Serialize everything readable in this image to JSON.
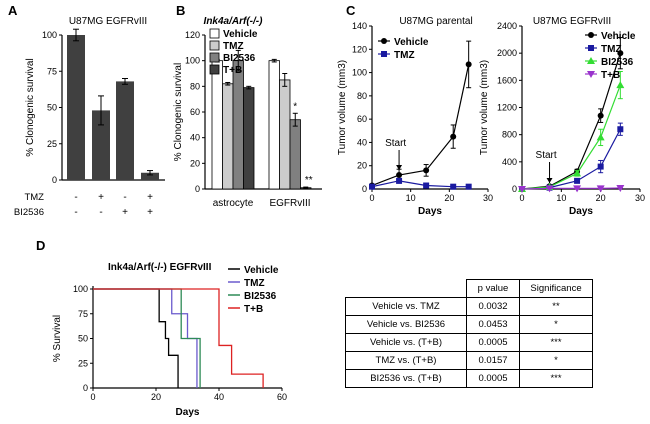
{
  "chart_data": [
    {
      "panel": "A",
      "type": "bar",
      "title": "U87MG EGFRvIII",
      "ylabel": "% Clonogenic survival",
      "ylim": [
        0,
        100
      ],
      "yticks": [
        0,
        25,
        50,
        75,
        100
      ],
      "row_labels": [
        "TMZ",
        "BI2536"
      ],
      "conditions": [
        [
          "-",
          "-"
        ],
        [
          "+",
          "-"
        ],
        [
          "-",
          "+"
        ],
        [
          "+",
          "+"
        ]
      ],
      "values": [
        100,
        48,
        68,
        5
      ],
      "errors": [
        4,
        10,
        2,
        1.5
      ],
      "color": "#404040"
    },
    {
      "panel": "B",
      "type": "bar",
      "title": "Ink4a/Arf(-/-)",
      "ylabel": "% Clonogenic survival",
      "ylim": [
        0,
        120
      ],
      "yticks": [
        0,
        20,
        40,
        60,
        80,
        100,
        120
      ],
      "categories": [
        "astrocyte",
        "EGFRvIII"
      ],
      "legend_position": "top",
      "series": [
        {
          "name": "Vehicle",
          "color": "#ffffff",
          "values": [
            100,
            100
          ],
          "errors": [
            1,
            1
          ]
        },
        {
          "name": "TMZ",
          "color": "#cccccc",
          "values": [
            82,
            85
          ],
          "errors": [
            1,
            5
          ]
        },
        {
          "name": "BI2536",
          "color": "#808080",
          "values": [
            100,
            54
          ],
          "errors": [
            8,
            5
          ]
        },
        {
          "name": "T+B",
          "color": "#404040",
          "values": [
            79,
            1
          ],
          "errors": [
            1,
            0.5
          ]
        }
      ],
      "annotations": [
        {
          "category": "EGFRvIII",
          "series": "BI2536",
          "text": "*"
        },
        {
          "category": "EGFRvIII",
          "series": "T+B",
          "text": "**"
        }
      ]
    },
    {
      "panel": "C",
      "type": "line",
      "title": "U87MG parental",
      "xlabel": "Days",
      "ylabel": "Tumor volume (mm3)",
      "xlim": [
        0,
        30
      ],
      "xticks": [
        0,
        10,
        20,
        30
      ],
      "ylim": [
        0,
        140
      ],
      "yticks": [
        0,
        20,
        40,
        60,
        80,
        100,
        120,
        140
      ],
      "annotation": "Start",
      "annotation_x": 7,
      "legend_position": "top-left",
      "series": [
        {
          "name": "Vehicle",
          "color": "#000000",
          "marker": "circle",
          "x": [
            0,
            7,
            14,
            21,
            25
          ],
          "y": [
            3,
            12,
            16,
            45,
            107
          ],
          "errors": [
            1,
            5,
            5,
            10,
            20
          ]
        },
        {
          "name": "TMZ",
          "color": "#1a1aa0",
          "marker": "square",
          "x": [
            0,
            7,
            14,
            21,
            25
          ],
          "y": [
            2,
            7,
            3,
            2,
            2
          ],
          "errors": [
            1,
            2,
            1,
            1,
            1
          ]
        }
      ]
    },
    {
      "panel": "C",
      "type": "line",
      "title": "U87MG EGFRvIII",
      "xlabel": "Days",
      "ylabel": "Tumor volume (mm3)",
      "xlim": [
        0,
        30
      ],
      "xticks": [
        0,
        10,
        20,
        30
      ],
      "ylim": [
        0,
        2400
      ],
      "yticks": [
        0,
        400,
        800,
        1200,
        1600,
        2000,
        2400
      ],
      "annotation": "Start",
      "annotation_x": 7,
      "legend_position": "top-right",
      "series": [
        {
          "name": "Vehicle",
          "color": "#000000",
          "marker": "circle",
          "x": [
            0,
            7,
            14,
            20,
            25
          ],
          "y": [
            0,
            40,
            260,
            1080,
            2000
          ],
          "errors": [
            5,
            10,
            30,
            100,
            230
          ]
        },
        {
          "name": "TMZ",
          "color": "#1a1aa0",
          "marker": "square",
          "x": [
            0,
            7,
            14,
            20,
            25
          ],
          "y": [
            0,
            20,
            120,
            330,
            880
          ],
          "errors": [
            5,
            5,
            20,
            90,
            90
          ]
        },
        {
          "name": "BI2536",
          "color": "#33dd33",
          "marker": "triangle",
          "x": [
            0,
            7,
            14,
            20,
            25
          ],
          "y": [
            0,
            30,
            230,
            760,
            1530
          ],
          "errors": [
            5,
            10,
            40,
            120,
            200
          ]
        },
        {
          "name": "T+B",
          "color": "#9933cc",
          "marker": "triangle-down",
          "x": [
            0,
            7,
            14,
            20,
            25
          ],
          "y": [
            0,
            10,
            10,
            10,
            15
          ],
          "errors": [
            2,
            2,
            2,
            2,
            2
          ]
        }
      ]
    },
    {
      "panel": "D",
      "type": "line",
      "subtype": "survival",
      "title": "Ink4a/Arf(-/-) EGFRvIII",
      "xlabel": "Days",
      "ylabel": "% Survival",
      "xlim": [
        0,
        60
      ],
      "xticks": [
        0,
        20,
        40,
        60
      ],
      "ylim": [
        0,
        100
      ],
      "yticks": [
        0,
        25,
        50,
        75,
        100
      ],
      "legend_position": "right",
      "series": [
        {
          "name": "Vehicle",
          "color": "#000000",
          "x": [
            0,
            21,
            21,
            23,
            23,
            24,
            24,
            27,
            27
          ],
          "y": [
            100,
            100,
            67,
            67,
            50,
            50,
            33,
            33,
            0
          ]
        },
        {
          "name": "TMZ",
          "color": "#6a5acd",
          "x": [
            0,
            25,
            25,
            30,
            30,
            33,
            33
          ],
          "y": [
            100,
            100,
            75,
            75,
            50,
            50,
            0
          ]
        },
        {
          "name": "BI2536",
          "color": "#2e8b57",
          "x": [
            0,
            28,
            28,
            34,
            34
          ],
          "y": [
            100,
            100,
            50,
            50,
            0
          ]
        },
        {
          "name": "T+B",
          "color": "#dd2222",
          "x": [
            0,
            40,
            40,
            44,
            44,
            54,
            54
          ],
          "y": [
            100,
            100,
            43,
            43,
            14,
            14,
            0
          ]
        }
      ]
    }
  ],
  "panel_letters": {
    "a": "A",
    "b": "B",
    "c": "C",
    "d": "D"
  },
  "table": {
    "headers": [
      "",
      "p value",
      "Significance"
    ],
    "rows": [
      {
        "comparison": "Vehicle vs. TMZ",
        "p": "0.0032",
        "sig": "**"
      },
      {
        "comparison": "Vehicle vs. BI2536",
        "p": "0.0453",
        "sig": "*"
      },
      {
        "comparison": "Vehicle vs. (T+B)",
        "p": "0.0005",
        "sig": "***"
      },
      {
        "comparison": "TMZ vs. (T+B)",
        "p": "0.0157",
        "sig": "*"
      },
      {
        "comparison": "BI2536 vs. (T+B)",
        "p": "0.0005",
        "sig": "***"
      }
    ]
  }
}
